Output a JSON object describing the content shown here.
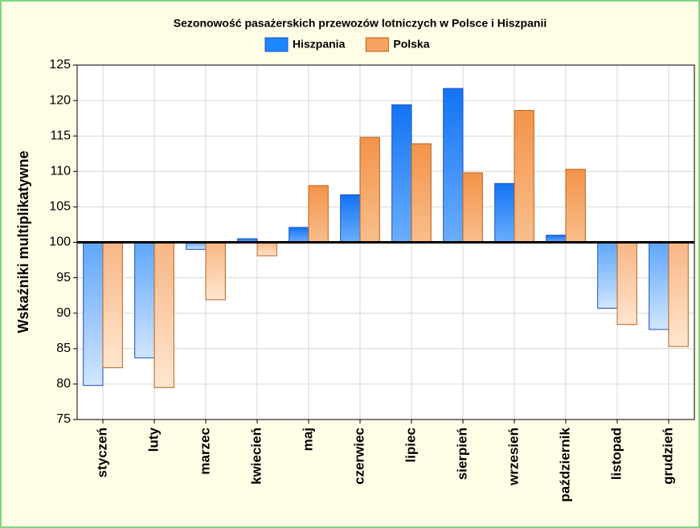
{
  "chart_data": {
    "type": "bar",
    "title": "Sezonowość pasażerskich przewozów lotniczych w Polsce i Hiszpanii",
    "y_label": "Wskaźniki multiplikatywne",
    "categories": [
      "styczeń",
      "luty",
      "marzec",
      "kwiecień",
      "maj",
      "czerwiec",
      "lipiec",
      "sierpień",
      "wrzesień",
      "październik",
      "listopad",
      "grudzień"
    ],
    "series": [
      {
        "name": "Hiszpania",
        "color": "#1e86ff",
        "values": [
          79.8,
          83.7,
          99.0,
          100.5,
          102.1,
          106.7,
          119.4,
          121.7,
          108.3,
          101.0,
          90.7,
          87.7
        ]
      },
      {
        "name": "Polska",
        "color": "#f7a25e",
        "values": [
          82.3,
          79.5,
          91.9,
          98.1,
          108.0,
          114.8,
          113.9,
          109.8,
          118.6,
          110.3,
          88.4,
          85.3
        ]
      }
    ],
    "baseline": 100,
    "ylim": [
      75,
      125
    ],
    "yticks": [
      75,
      80,
      85,
      90,
      95,
      100,
      105,
      110,
      115,
      120,
      125
    ],
    "grid": true
  }
}
